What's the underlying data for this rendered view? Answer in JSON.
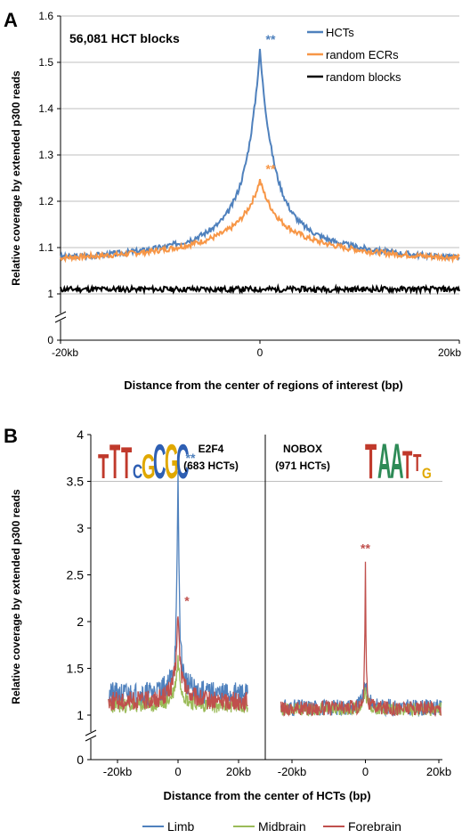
{
  "chart_data": [
    {
      "panel": "A",
      "type": "line",
      "annotation": "56,081 HCT blocks",
      "xlabel": "Distance from the center of regions of interest (bp)",
      "ylabel": "Relative coverage by extended p300 reads",
      "xlim": [
        -20000,
        20000
      ],
      "ylim": [
        0,
        1.6
      ],
      "axis_break_between": [
        0,
        1
      ],
      "yticks": [
        0,
        1,
        1.1,
        1.2,
        1.3,
        1.4,
        1.5,
        1.6
      ],
      "xticks": [
        {
          "value": -20000,
          "label": "-20kb"
        },
        {
          "value": 0,
          "label": "0"
        },
        {
          "value": 20000,
          "label": "20kb"
        }
      ],
      "grid": true,
      "legend_position": "top-right",
      "series": [
        {
          "name": "HCTs",
          "color": "#4F81BD",
          "baseline": 1.08,
          "edge": 1.075,
          "peak": 1.525,
          "width": 1300,
          "width2": 6000,
          "amp2": 0.12,
          "noise": 0.006,
          "seed": 3,
          "marker": "**"
        },
        {
          "name": "random ECRs",
          "color": "#F79646",
          "baseline": 1.08,
          "edge": 1.075,
          "peak": 1.245,
          "width": 1300,
          "width2": 6000,
          "amp2": 0.09,
          "noise": 0.006,
          "seed": 7,
          "marker": "**"
        },
        {
          "name": "random blocks",
          "color": "#000000",
          "baseline": 1.01,
          "edge": 1.01,
          "peak": 1.01,
          "width": 1000,
          "width2": 1000,
          "amp2": 0,
          "noise": 0.006,
          "seed": 11
        }
      ]
    },
    {
      "panel": "B",
      "type": "line",
      "xlabel": "Distance from the center of HCTs (bp)",
      "ylabel": "Relative coverage by extended p300 reads",
      "ylim": [
        0,
        4
      ],
      "axis_break_between": [
        0,
        1
      ],
      "yticks": [
        0,
        1,
        1.5,
        2,
        2.5,
        3,
        3.5,
        4
      ],
      "grid_y": [
        3.5
      ],
      "legend_position": "bottom",
      "legend": [
        {
          "name": "Limb",
          "color": "#4F81BD"
        },
        {
          "name": "Midbrain",
          "color": "#9BBB59"
        },
        {
          "name": "Forebrain",
          "color": "#C0504D"
        }
      ],
      "subplots": [
        {
          "motif": "E2F4",
          "count": "(683 HCTs)",
          "logo": "TTTCGCGC",
          "xlim": [
            -20000,
            20000
          ],
          "xticks": [
            {
              "value": -20000,
              "label": "-20kb"
            },
            {
              "value": 0,
              "label": "0"
            },
            {
              "value": 20000,
              "label": "20kb"
            }
          ],
          "series": [
            {
              "name": "Limb",
              "color": "#4F81BD",
              "baseline": 1.22,
              "peak": 3.65,
              "width": 450,
              "width2": 3000,
              "amp2": 0.35,
              "noise": 0.13,
              "seed": 21,
              "marker": "**"
            },
            {
              "name": "Midbrain",
              "color": "#9BBB59",
              "baseline": 1.1,
              "peak": 1.6,
              "width": 900,
              "width2": 3000,
              "amp2": 0.15,
              "noise": 0.08,
              "seed": 23
            },
            {
              "name": "Forebrain",
              "color": "#C0504D",
              "baseline": 1.15,
              "peak": 2.12,
              "width": 600,
              "width2": 3000,
              "amp2": 0.3,
              "noise": 0.1,
              "seed": 25,
              "marker": "*"
            }
          ]
        },
        {
          "motif": "NOBOX",
          "count": "(971 HCTs)",
          "logo": "TAATTG",
          "xlim": [
            -20000,
            20000
          ],
          "xticks": [
            {
              "value": -20000,
              "label": "-20kb"
            },
            {
              "value": 0,
              "label": "0"
            },
            {
              "value": 20000,
              "label": "20kb"
            }
          ],
          "series": [
            {
              "name": "Limb",
              "color": "#4F81BD",
              "baseline": 1.08,
              "peak": 1.35,
              "width": 600,
              "width2": 3000,
              "amp2": 0.05,
              "noise": 0.09,
              "seed": 31
            },
            {
              "name": "Midbrain",
              "color": "#9BBB59",
              "baseline": 1.06,
              "peak": 1.25,
              "width": 600,
              "width2": 3000,
              "amp2": 0.04,
              "noise": 0.07,
              "seed": 33
            },
            {
              "name": "Forebrain",
              "color": "#C0504D",
              "baseline": 1.07,
              "peak": 2.68,
              "width": 220,
              "width2": 3000,
              "amp2": 0.05,
              "noise": 0.08,
              "seed": 35,
              "marker": "**"
            }
          ]
        }
      ]
    }
  ]
}
